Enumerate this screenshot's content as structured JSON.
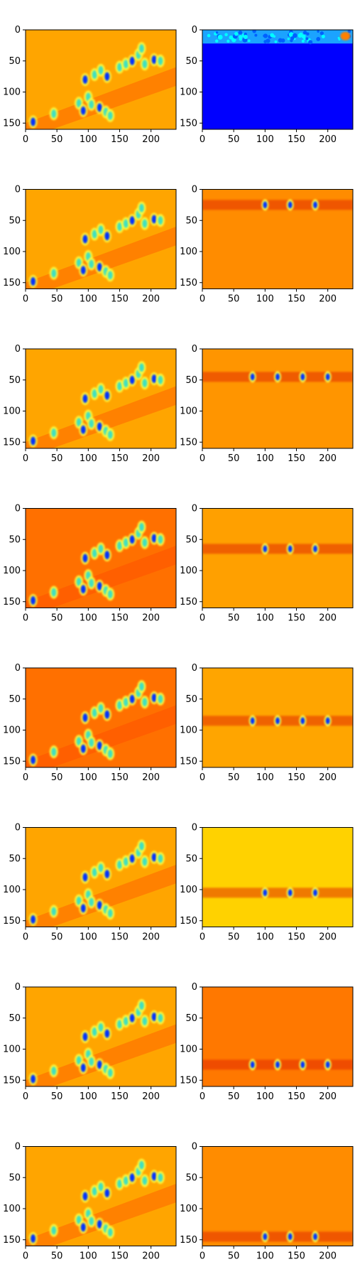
{
  "figure": {
    "rows": 8,
    "cols": 2,
    "colormap": "jet"
  },
  "chart_data": {
    "type": "heatmap",
    "description_of_layout": "grid",
    "x_ticks": [
      0,
      50,
      100,
      150,
      200
    ],
    "y_ticks": [
      0,
      50,
      100,
      150
    ],
    "xlim": [
      0,
      240
    ],
    "ylim": [
      160,
      0
    ],
    "colormap": "jet",
    "panels": [
      {
        "row": 0,
        "col": 0,
        "background": "#ffa500"
      },
      {
        "row": 0,
        "col": 1,
        "background": "#0000ff"
      },
      {
        "row": 1,
        "col": 0,
        "background": "#ffa500"
      },
      {
        "row": 1,
        "col": 1,
        "background": "#ff8c00"
      },
      {
        "row": 2,
        "col": 0,
        "background": "#ffa500"
      },
      {
        "row": 2,
        "col": 1,
        "background": "#ff9500"
      },
      {
        "row": 3,
        "col": 0,
        "background": "#ff7000"
      },
      {
        "row": 3,
        "col": 1,
        "background": "#ffa000"
      },
      {
        "row": 4,
        "col": 0,
        "background": "#ff7000"
      },
      {
        "row": 4,
        "col": 1,
        "background": "#ffa500"
      },
      {
        "row": 5,
        "col": 0,
        "background": "#ffa500"
      },
      {
        "row": 5,
        "col": 1,
        "background": "#ffd200"
      },
      {
        "row": 6,
        "col": 0,
        "background": "#ffa500"
      },
      {
        "row": 6,
        "col": 1,
        "background": "#ff7800"
      },
      {
        "row": 7,
        "col": 0,
        "background": "#ffa500"
      },
      {
        "row": 7,
        "col": 1,
        "background": "#ff8c00"
      }
    ]
  }
}
